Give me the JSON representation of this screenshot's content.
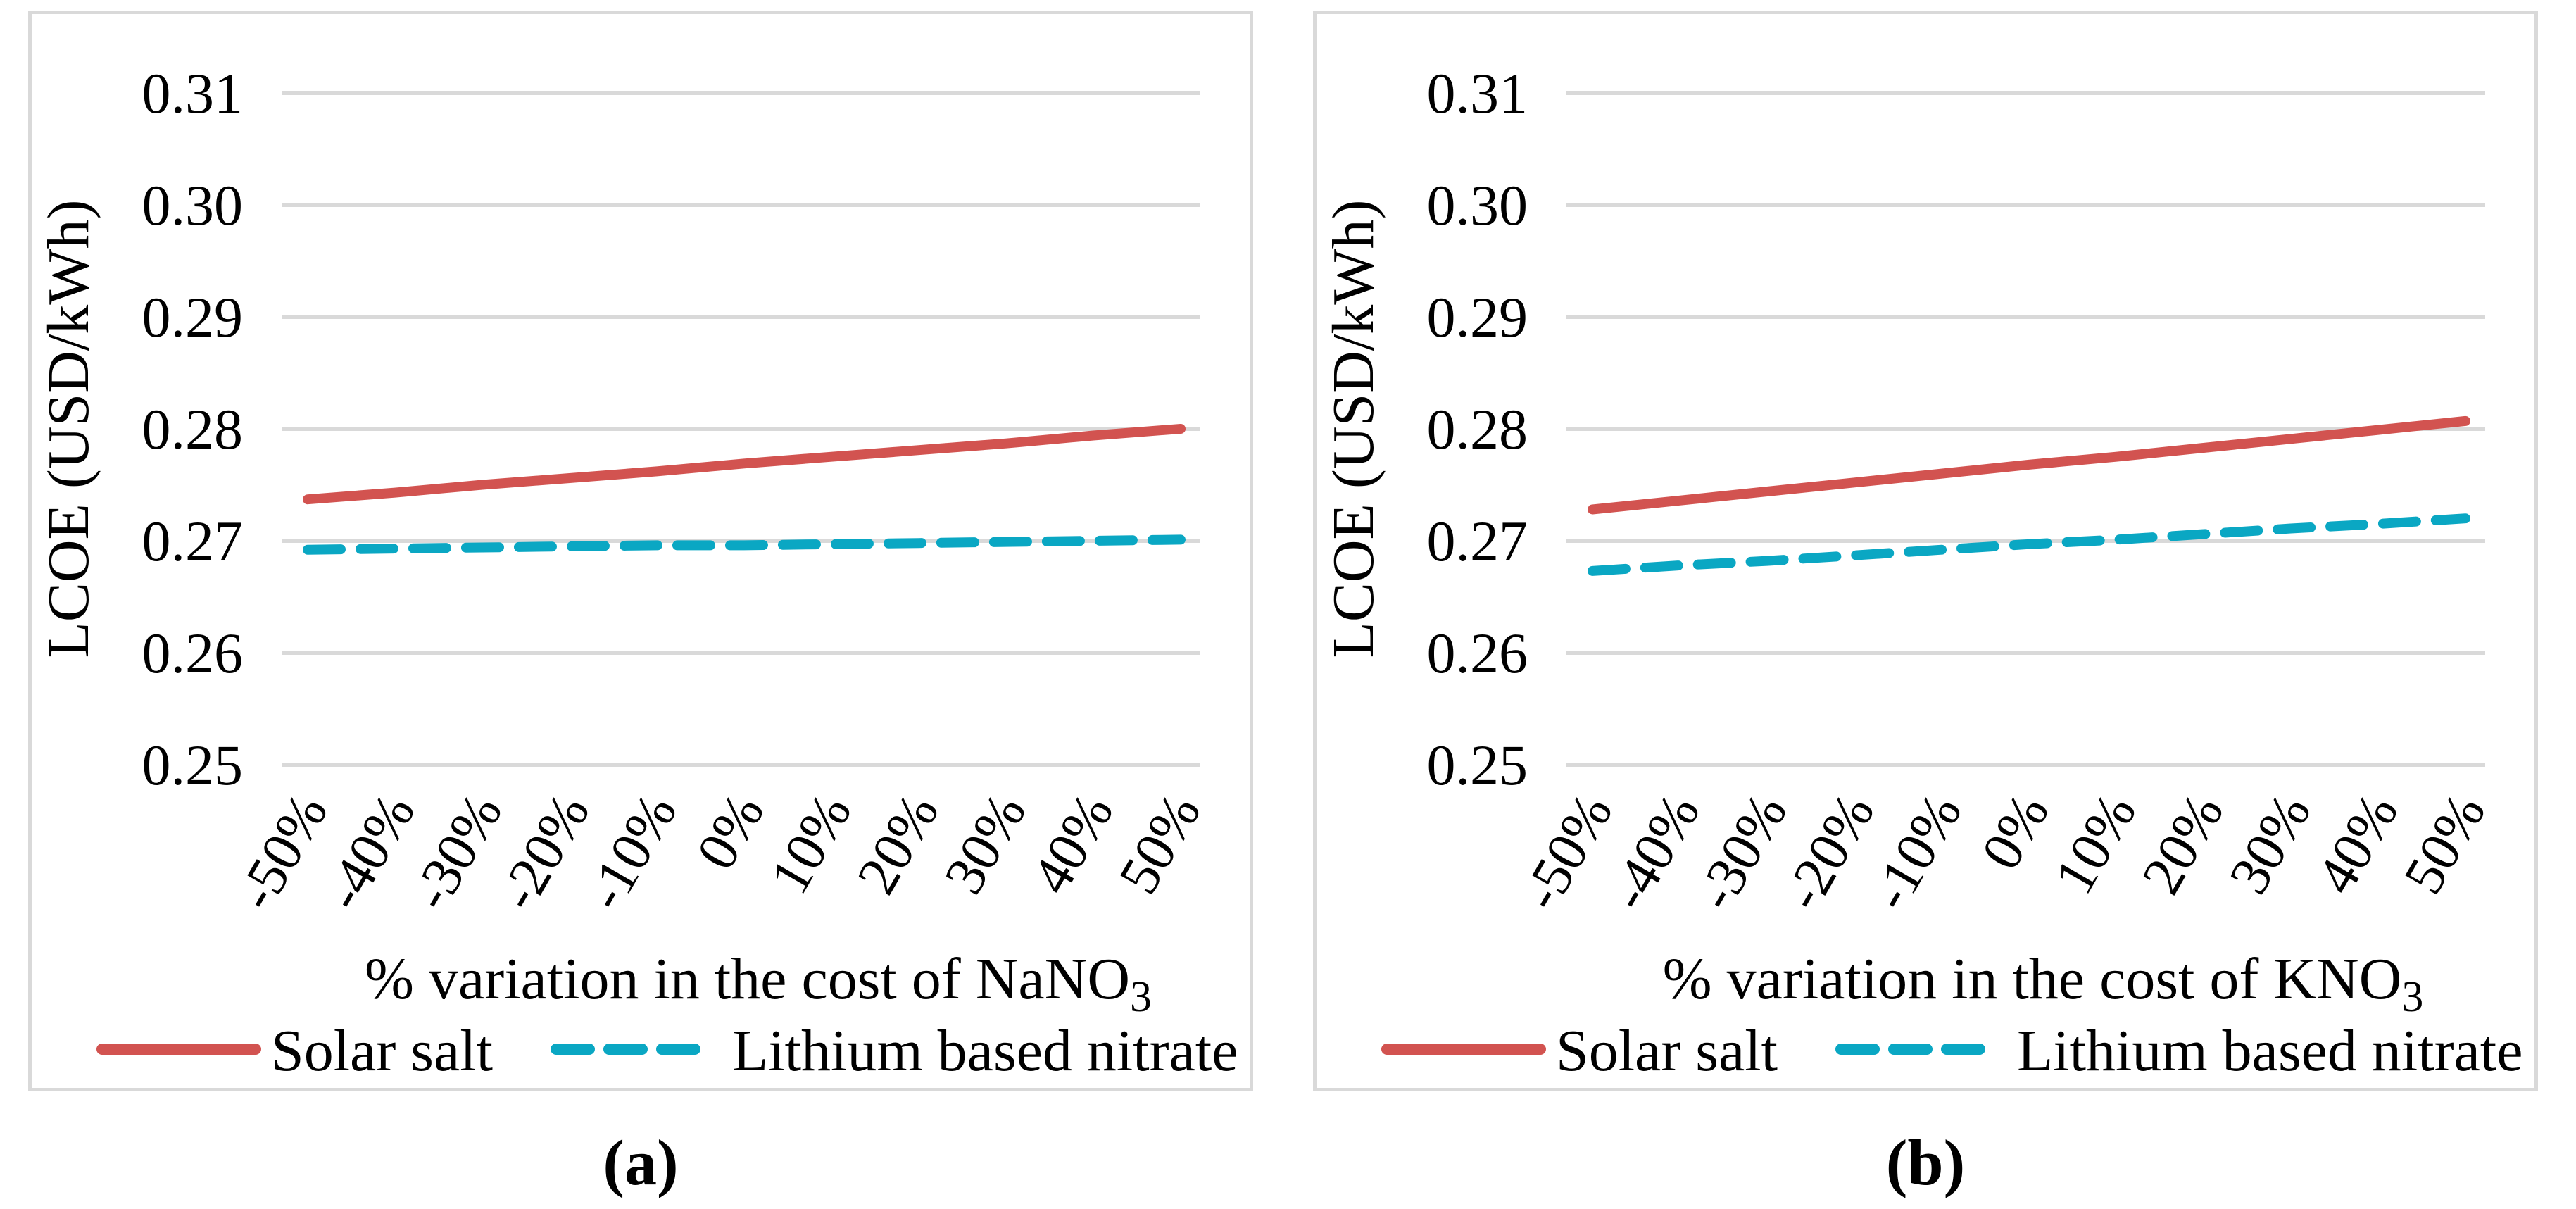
{
  "figure": {
    "background": "#ffffff",
    "panel_border_color": "#D9D9D9",
    "gridline_color": "#D9D9D9",
    "text_color": "#000000"
  },
  "chart_data": [
    {
      "panel": "a",
      "type": "line",
      "title": "",
      "ylabel": "LCOE (USD/kWh)",
      "xlabel_prefix": "% variation in the cost of ",
      "xlabel_formula": "NaNO",
      "xlabel_subscript": "3",
      "caption": "(a)",
      "categories": [
        "-50%",
        "-40%",
        "-30%",
        "-20%",
        "-10%",
        "0%",
        "10%",
        "20%",
        "30%",
        "40%",
        "50%"
      ],
      "ylim": [
        0.25,
        0.31
      ],
      "ytick_labels": [
        "0.31",
        "0.30",
        "0.29",
        "0.28",
        "0.27",
        "0.26",
        "0.25"
      ],
      "ytick_values": [
        0.31,
        0.3,
        0.29,
        0.28,
        0.27,
        0.26,
        0.25
      ],
      "grid": true,
      "legend_position": "bottom",
      "series": [
        {
          "name": "Solar salt",
          "color": "#D25350",
          "style": "solid",
          "values": [
            0.2737,
            0.2743,
            0.275,
            0.2756,
            0.2762,
            0.2769,
            0.2775,
            0.2781,
            0.2787,
            0.2794,
            0.28
          ]
        },
        {
          "name": "Lithium based nitrate",
          "color": "#0AA7C3",
          "style": "dashed",
          "values": [
            0.2692,
            0.2693,
            0.2694,
            0.2695,
            0.2696,
            0.2696,
            0.2697,
            0.2698,
            0.2699,
            0.27,
            0.2701
          ]
        }
      ]
    },
    {
      "panel": "b",
      "type": "line",
      "title": "",
      "ylabel": "LCOE (USD/kWh)",
      "xlabel_prefix": "% variation in the cost of ",
      "xlabel_formula": "KNO",
      "xlabel_subscript": "3",
      "caption": "(b)",
      "categories": [
        "-50%",
        "-40%",
        "-30%",
        "-20%",
        "-10%",
        "0%",
        "10%",
        "20%",
        "30%",
        "40%",
        "50%"
      ],
      "ylim": [
        0.25,
        0.31
      ],
      "ytick_labels": [
        "0.31",
        "0.30",
        "0.29",
        "0.28",
        "0.27",
        "0.26",
        "0.25"
      ],
      "ytick_values": [
        0.31,
        0.3,
        0.29,
        0.28,
        0.27,
        0.26,
        0.25
      ],
      "grid": true,
      "legend_position": "bottom",
      "series": [
        {
          "name": "Solar salt",
          "color": "#D25350",
          "style": "solid",
          "values": [
            0.2728,
            0.2736,
            0.2744,
            0.2752,
            0.276,
            0.2768,
            0.2775,
            0.2783,
            0.2791,
            0.2799,
            0.2807
          ]
        },
        {
          "name": "Lithium based nitrate",
          "color": "#0AA7C3",
          "style": "dashed",
          "values": [
            0.2673,
            0.2678,
            0.2682,
            0.2687,
            0.2692,
            0.2697,
            0.2701,
            0.2706,
            0.2711,
            0.2715,
            0.272
          ]
        }
      ]
    }
  ]
}
